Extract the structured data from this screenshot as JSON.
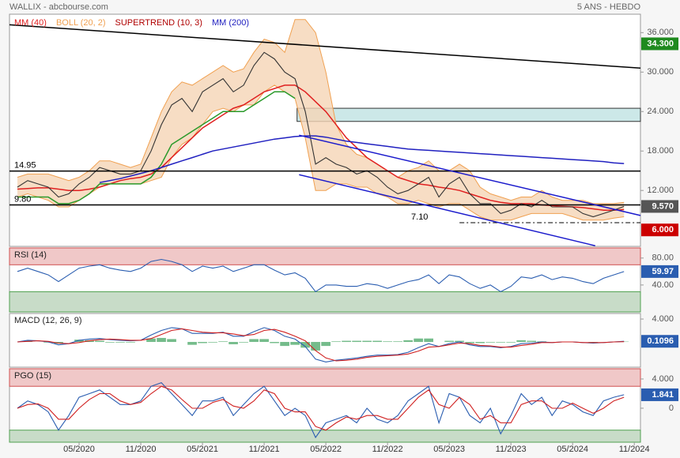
{
  "header": {
    "title": "WALLIX - abcbourse.com",
    "period": "5 ANS - HEBDO"
  },
  "chart_data": {
    "type": "stock",
    "x": [
      0,
      1,
      2,
      3,
      4,
      5,
      6,
      7,
      8,
      9,
      10,
      11,
      12,
      13,
      14,
      15,
      16,
      17,
      18,
      19,
      20,
      21,
      22,
      23,
      24,
      25,
      26,
      27,
      28,
      29,
      30,
      31,
      32,
      33,
      34,
      35,
      36,
      37,
      38,
      39,
      40,
      41,
      42,
      43,
      44,
      45,
      46,
      47,
      48,
      49,
      50,
      51,
      52,
      53,
      54,
      55,
      56,
      57,
      58,
      59
    ],
    "xlim": [
      -0.77,
      60.6
    ],
    "xticks": [
      {
        "value": 6,
        "label": "05/2020"
      },
      {
        "value": 12,
        "label": "11/2020"
      },
      {
        "value": 18,
        "label": "05/2021"
      },
      {
        "value": 24,
        "label": "11/2021"
      },
      {
        "value": 30,
        "label": "05/2022"
      },
      {
        "value": 36,
        "label": "11/2022"
      },
      {
        "value": 42,
        "label": "05/2023"
      },
      {
        "value": 48,
        "label": "11/2023"
      },
      {
        "value": 54,
        "label": "05/2024"
      },
      {
        "value": 60,
        "label": "11/2024"
      }
    ],
    "panels": [
      {
        "ylim": [
          3.5,
          38.8
        ],
        "yticks": [
          {
            "value": 36,
            "label": "36.000"
          },
          {
            "value": 30,
            "label": "30.000"
          },
          {
            "value": 24,
            "label": "24.000"
          },
          {
            "value": 18,
            "label": "18.000"
          },
          {
            "value": 12,
            "label": "12.000"
          }
        ],
        "series": [
          {
            "name": "MM (40)",
            "color": "#e02020",
            "style": "line",
            "values": [
              12.2,
              12.3,
              12.4,
              12.4,
              12.2,
              12,
              12,
              12.2,
              12.5,
              13,
              13.5,
              13.8,
              14,
              14.5,
              15.5,
              17,
              18.5,
              20,
              21.5,
              22.5,
              23.5,
              24.5,
              25,
              26,
              27,
              27.5,
              28,
              28,
              27,
              25.5,
              24,
              22,
              20,
              18.5,
              17,
              16,
              15,
              14,
              13.5,
              13,
              12.8,
              12.5,
              12.3,
              12,
              11.5,
              11,
              10.5,
              10.2,
              10,
              10,
              10,
              9.8,
              9.7,
              9.6,
              9.5,
              9.4,
              9.2,
              9,
              9,
              9.1
            ]
          },
          {
            "name": "BOLL (20, 2)",
            "color": "#f0a050",
            "style": "band",
            "values": [
              14,
              14.5,
              14.5,
              14.5,
              14,
              13.5,
              14,
              15,
              16.5,
              16.5,
              16,
              15.5,
              16,
              20,
              24,
              27,
              28.5,
              28,
              29,
              30,
              31,
              30,
              30.5,
              33,
              35,
              34.5,
              33,
              38,
              38,
              36,
              30,
              22,
              19,
              17.5,
              17,
              16,
              15,
              14,
              15,
              15.5,
              16.5,
              15,
              15,
              16,
              15,
              12.5,
              11.5,
              11,
              10.5,
              11,
              11,
              12,
              11,
              10.5,
              10.5,
              10.5,
              10,
              10,
              10,
              10.2
            ],
            "lower": [
              11,
              11.5,
              11,
              10.5,
              9.5,
              9.5,
              10.5,
              11.5,
              12.5,
              13,
              13,
              13,
              13,
              13.5,
              14,
              17,
              19,
              20,
              22,
              24,
              24.5,
              24,
              25,
              25,
              27,
              28,
              27,
              26,
              20,
              12,
              12,
              13,
              13,
              12.5,
              12.5,
              11.5,
              11,
              10,
              10,
              10.5,
              10,
              9.5,
              10,
              10,
              9,
              8,
              7.5,
              7.5,
              7.5,
              8,
              8.5,
              8.5,
              8.5,
              8.5,
              8,
              7.5,
              7.5,
              7.5,
              7.8,
              8
            ]
          },
          {
            "name": "SUPERTREND (10, 3)",
            "color": "#b00000",
            "line_color": "#2a9a2a",
            "style": "line",
            "values": [
              11,
              11,
              11,
              11,
              10,
              10,
              10.5,
              11.5,
              13,
              13,
              13,
              13,
              13,
              14,
              16,
              19,
              20,
              21,
              22,
              23,
              24,
              24,
              24,
              25,
              26,
              27,
              27,
              26,
              null,
              null,
              null,
              null,
              null,
              null,
              null,
              null,
              null,
              null,
              null,
              null,
              null,
              null,
              null,
              null,
              null,
              null,
              null,
              null,
              null,
              null,
              null,
              null,
              null,
              null,
              null,
              null,
              null,
              null,
              null,
              null
            ]
          },
          {
            "name": "MM (200)",
            "color": "#2020c0",
            "style": "line",
            "values": [
              null,
              null,
              null,
              null,
              null,
              null,
              null,
              null,
              13.2,
              13.5,
              13.8,
              14.2,
              14.6,
              15,
              15.5,
              16,
              16.5,
              17,
              17.5,
              18,
              18.3,
              18.6,
              18.9,
              19.2,
              19.5,
              19.8,
              20,
              20.2,
              20.3,
              20.3,
              20.1,
              19.8,
              19.5,
              19.3,
              19.1,
              18.9,
              18.7,
              18.5,
              18.3,
              18.2,
              18.1,
              18,
              17.9,
              17.8,
              17.7,
              17.6,
              17.5,
              17.4,
              17.3,
              17.2,
              17.1,
              17,
              16.9,
              16.8,
              16.7,
              16.6,
              16.5,
              16.4,
              16.2,
              16.1
            ]
          },
          {
            "color": "#333333",
            "style": "line",
            "values": [
              12.5,
              13.5,
              13,
              12.5,
              11,
              11.5,
              13,
              14,
              15.5,
              15,
              14.5,
              14.5,
              15,
              18,
              22,
              25,
              26,
              24,
              27,
              28,
              29,
              27,
              28,
              31,
              33,
              32,
              30,
              29,
              24,
              16,
              17,
              16,
              15.5,
              14.5,
              15,
              14,
              12.5,
              11.5,
              12,
              13,
              14,
              11,
              13,
              14,
              11.5,
              10,
              10,
              8.5,
              9,
              10,
              9.5,
              10.5,
              9.5,
              9.5,
              9.5,
              8.5,
              8,
              8.5,
              9,
              9.57
            ]
          }
        ],
        "hlines": [
          {
            "value": 14.95,
            "style": "solid"
          },
          {
            "value": 9.8,
            "label": "9.80",
            "style": "solid"
          },
          {
            "value": 7.1,
            "label": "7.10",
            "style": "dashdot"
          }
        ],
        "zones": [
          {
            "y": [
              22.5,
              24.5
            ],
            "x": [
              27.2,
              60.6
            ],
            "color": "#cce8e8"
          }
        ],
        "trendlines": [
          {
            "color": "#000000",
            "x": [
              -0.77,
              60.6
            ],
            "y": [
              37.2,
              30.6
            ]
          },
          {
            "color": "#1a1acc",
            "x": [
              27.4,
              60.6
            ],
            "y": [
              20.4,
              8.2
            ]
          },
          {
            "color": "#1a1acc",
            "x": [
              27.4,
              56.2
            ],
            "y": [
              14.4,
              3.6
            ]
          }
        ],
        "badges": [
          {
            "value": 34.3,
            "label": "34.300",
            "color": "#1f8a1f"
          },
          {
            "value": 9.57,
            "label": "9.570",
            "color": "#555555"
          },
          {
            "value": 6,
            "label": "6.000",
            "color": "#cc0000"
          }
        ]
      },
      {
        "title": "RSI (14)",
        "ylim": [
          0,
          95
        ],
        "yticks": [
          {
            "value": 80,
            "label": "80.00"
          },
          {
            "value": 40,
            "label": "40.00"
          }
        ],
        "overbought": 70,
        "oversold": 30,
        "series": [
          {
            "color": "#2a5db0",
            "style": "line",
            "values": [
              60,
              65,
              60,
              55,
              45,
              55,
              65,
              68,
              70,
              65,
              62,
              60,
              65,
              75,
              78,
              75,
              70,
              60,
              68,
              65,
              68,
              60,
              65,
              70,
              70,
              62,
              55,
              58,
              50,
              30,
              40,
              40,
              38,
              38,
              42,
              40,
              35,
              40,
              45,
              48,
              55,
              42,
              55,
              52,
              42,
              35,
              40,
              30,
              38,
              52,
              50,
              55,
              48,
              52,
              50,
              45,
              42,
              50,
              55,
              59.97
            ]
          }
        ],
        "badges": [
          {
            "value": 59.97,
            "color": "#2a5db0"
          }
        ]
      },
      {
        "title": "MACD (12, 26, 9)",
        "ylim": [
          -4.41,
          4.97
        ],
        "yticks": [
          {
            "value": 4,
            "label": "4.000"
          }
        ],
        "series": [
          {
            "color": "#3aa05a",
            "style": "bars",
            "values": [
              0,
              0.2,
              0,
              -0.1,
              -0.3,
              0,
              0.4,
              0.3,
              0.2,
              -0.1,
              -0.1,
              -0.1,
              0,
              0.6,
              0.7,
              0.5,
              0,
              -0.5,
              -0.2,
              -0.1,
              0.1,
              -0.4,
              -0.1,
              0.5,
              0.5,
              -0.2,
              -0.7,
              -0.5,
              -1,
              -1.5,
              -0.7,
              0.1,
              0.2,
              0.2,
              0.2,
              0.2,
              0.1,
              0.1,
              0.3,
              0.6,
              0.6,
              0,
              0.2,
              0.2,
              -0.2,
              -0.2,
              -0.1,
              -0.1,
              -0.1,
              0.3,
              0.2,
              0.1,
              0,
              0,
              0,
              0,
              -0.1,
              0,
              0,
              0.06
            ]
          },
          {
            "color": "#2a5db0",
            "style": "line",
            "values": [
              0,
              0.3,
              0.2,
              0,
              -0.5,
              -0.3,
              0.3,
              0.5,
              0.6,
              0.4,
              0.3,
              0.2,
              0.3,
              1.2,
              2,
              2.5,
              2.3,
              1.5,
              1.5,
              1.5,
              1.7,
              1,
              1,
              1.8,
              2.5,
              2,
              1,
              0.5,
              -0.8,
              -3,
              -3.5,
              -3.2,
              -3,
              -2.8,
              -2.5,
              -2.3,
              -2.3,
              -2.2,
              -1.8,
              -1,
              -0.3,
              -0.8,
              -0.3,
              0,
              -0.5,
              -0.8,
              -0.8,
              -1,
              -0.8,
              -0.3,
              -0.2,
              0,
              -0.1,
              0,
              0,
              -0.1,
              -0.2,
              -0.1,
              0,
              0.1096
            ]
          },
          {
            "color": "#d02020",
            "style": "line",
            "values": [
              0,
              0.1,
              0.2,
              0.1,
              -0.2,
              -0.3,
              -0.1,
              0.2,
              0.4,
              0.5,
              0.4,
              0.3,
              0.3,
              0.6,
              1.3,
              2,
              2.3,
              2,
              1.7,
              1.6,
              1.6,
              1.4,
              1.1,
              1.3,
              2,
              2.2,
              1.7,
              1,
              0.2,
              -1.5,
              -2.8,
              -3.3,
              -3.2,
              -3,
              -2.7,
              -2.5,
              -2.4,
              -2.3,
              -2.1,
              -1.6,
              -0.9,
              -0.8,
              -0.5,
              -0.2,
              -0.3,
              -0.6,
              -0.7,
              -0.9,
              -0.9,
              -0.6,
              -0.4,
              -0.1,
              -0.1,
              0,
              0,
              -0.1,
              -0.1,
              -0.1,
              0,
              0.05
            ]
          }
        ],
        "badges": [
          {
            "value": 0.1096,
            "color": "#2a5db0"
          }
        ]
      },
      {
        "title": "PGO (15)",
        "ylim": [
          -4.65,
          5.4
        ],
        "yticks": [
          {
            "value": 4,
            "label": "4.000"
          },
          0
        ],
        "overbought": 3,
        "oversold": -3,
        "series": [
          {
            "color": "#2a5db0",
            "style": "line",
            "values": [
              0,
              1,
              0.5,
              -0.5,
              -3,
              -1,
              1.5,
              2,
              2.5,
              1.5,
              0.5,
              0.5,
              1,
              3,
              3.5,
              2,
              0.5,
              -1,
              1,
              1,
              1.5,
              -1,
              0.5,
              2,
              3,
              1,
              -1,
              0,
              -1,
              -4,
              -2,
              -1.5,
              -1,
              -2,
              0,
              -1.5,
              -2,
              -1,
              1,
              2,
              3,
              -2,
              2,
              1.5,
              -1,
              -2,
              0,
              -3.5,
              -1,
              2,
              0.5,
              1.5,
              -1,
              1,
              0.5,
              -0.5,
              -1,
              1,
              1.5,
              1.841
            ]
          },
          {
            "color": "#d02020",
            "style": "line",
            "values": [
              0,
              0.5,
              0.6,
              0,
              -1.5,
              -1.5,
              0,
              1.2,
              2,
              2,
              1,
              0.5,
              0.8,
              2,
              3,
              2.5,
              1.2,
              0,
              0,
              0.8,
              1.2,
              0.3,
              0,
              1,
              2.5,
              2,
              0,
              -0.5,
              -0.5,
              -2.5,
              -3,
              -2,
              -1.2,
              -1.5,
              -1,
              -1,
              -1.5,
              -1.5,
              0,
              1.5,
              2.5,
              0.5,
              0,
              1.5,
              0.5,
              -1.5,
              -1,
              -2,
              -2,
              0.5,
              1,
              1,
              0,
              0,
              0.7,
              0,
              -0.7,
              0,
              1,
              1.5
            ]
          }
        ],
        "badges": [
          {
            "value": 1.841,
            "color": "#2a5db0"
          }
        ]
      }
    ]
  }
}
